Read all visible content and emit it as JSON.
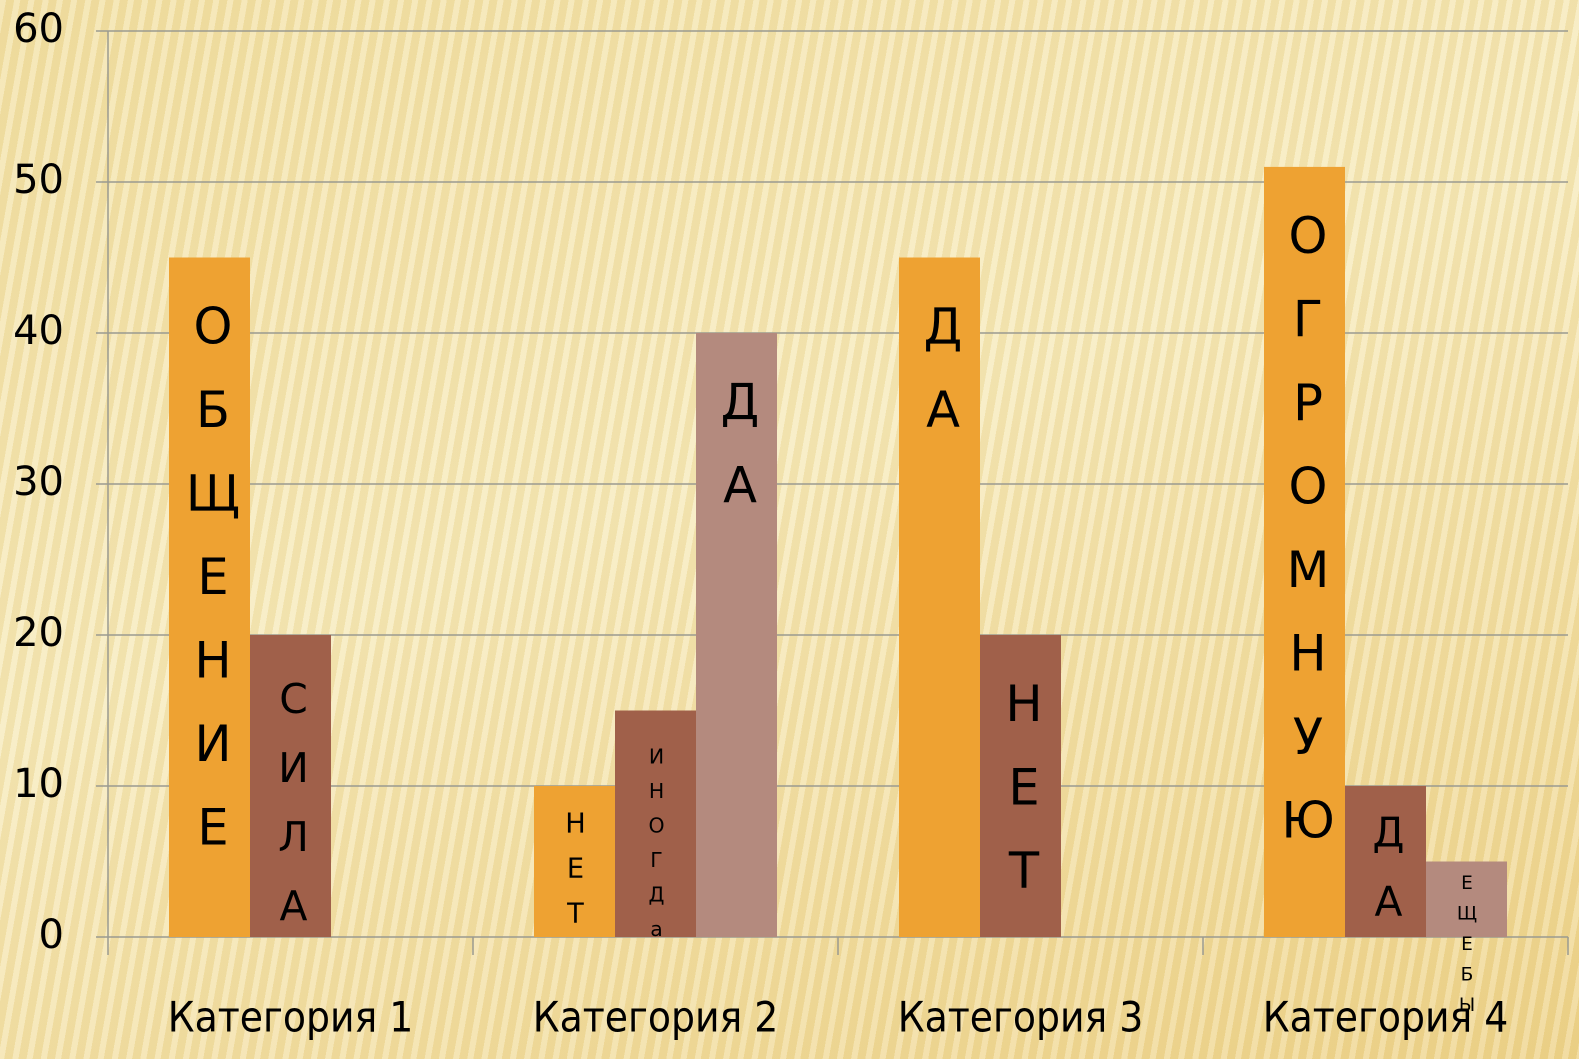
{
  "chart_data": {
    "type": "bar",
    "categories": [
      "Категория 1",
      "Категория 2",
      "Категория 3",
      "Категория 4"
    ],
    "series": [
      {
        "color": "#eea232",
        "values": [
          45,
          10,
          45,
          51
        ],
        "labels": [
          "ОБЩЕНИЕ",
          "НЕТ",
          "ДА",
          "ОГРОМНУЮ"
        ]
      },
      {
        "color": "#a0604a",
        "values": [
          20,
          15,
          20,
          10
        ],
        "labels": [
          "СИЛА",
          "ИНОГДа",
          "НЕТ",
          "ДА"
        ]
      },
      {
        "color": "#b48a7e",
        "values": [
          null,
          40,
          null,
          5
        ],
        "labels": [
          null,
          "ДА",
          null,
          "ЕЩЕБЫ"
        ]
      }
    ],
    "ylim": [
      0,
      60
    ],
    "yticks": [
      0,
      10,
      20,
      30,
      40,
      50,
      60
    ],
    "grid": true
  }
}
